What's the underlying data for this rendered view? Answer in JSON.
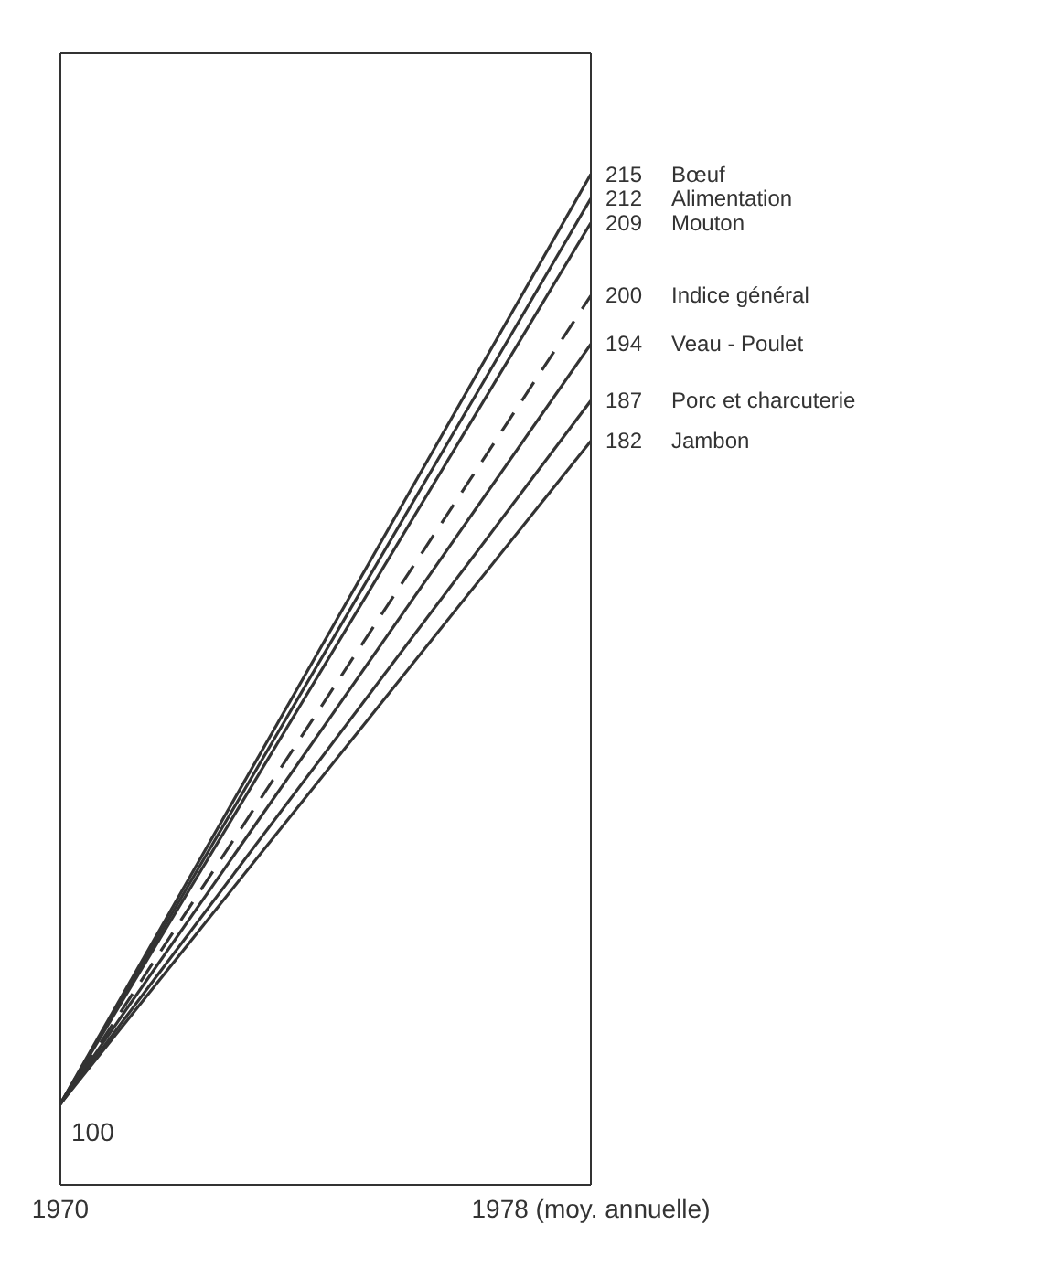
{
  "chart_data": {
    "type": "line",
    "x": [
      1970,
      1978
    ],
    "xlim": [
      1970,
      1978
    ],
    "xticks": [
      1970,
      {
        "value": 1978,
        "label": "1978 (moy. annuelle)"
      }
    ],
    "ylim": [
      90,
      230
    ],
    "tick_labels": "x",
    "legend": false,
    "marker": "none",
    "series": [
      {
        "name": "Bœuf",
        "color": "#333333",
        "values": [
          100,
          215
        ],
        "value_labels": [
          "100",
          "215"
        ]
      },
      {
        "name": "Alimentation",
        "color": "#333333",
        "values": [
          100,
          212
        ],
        "value_labels": [
          null,
          "212"
        ]
      },
      {
        "name": "Mouton",
        "color": "#333333",
        "values": [
          100,
          209
        ],
        "value_labels": [
          null,
          "209"
        ]
      },
      {
        "name": "Indice général",
        "color": "#333333",
        "values": [
          100,
          200
        ],
        "value_labels": [
          null,
          "200"
        ],
        "line_style": "dashed"
      },
      {
        "name": "Veau - Poulet",
        "color": "#333333",
        "values": [
          100,
          194
        ],
        "value_labels": [
          null,
          "194"
        ]
      },
      {
        "name": "Porc et charcuterie",
        "color": "#333333",
        "values": [
          100,
          187
        ],
        "value_labels": [
          null,
          "187"
        ]
      },
      {
        "name": "Jambon",
        "color": "#333333",
        "values": [
          100,
          182
        ],
        "value_labels": [
          null,
          "182"
        ]
      }
    ]
  }
}
